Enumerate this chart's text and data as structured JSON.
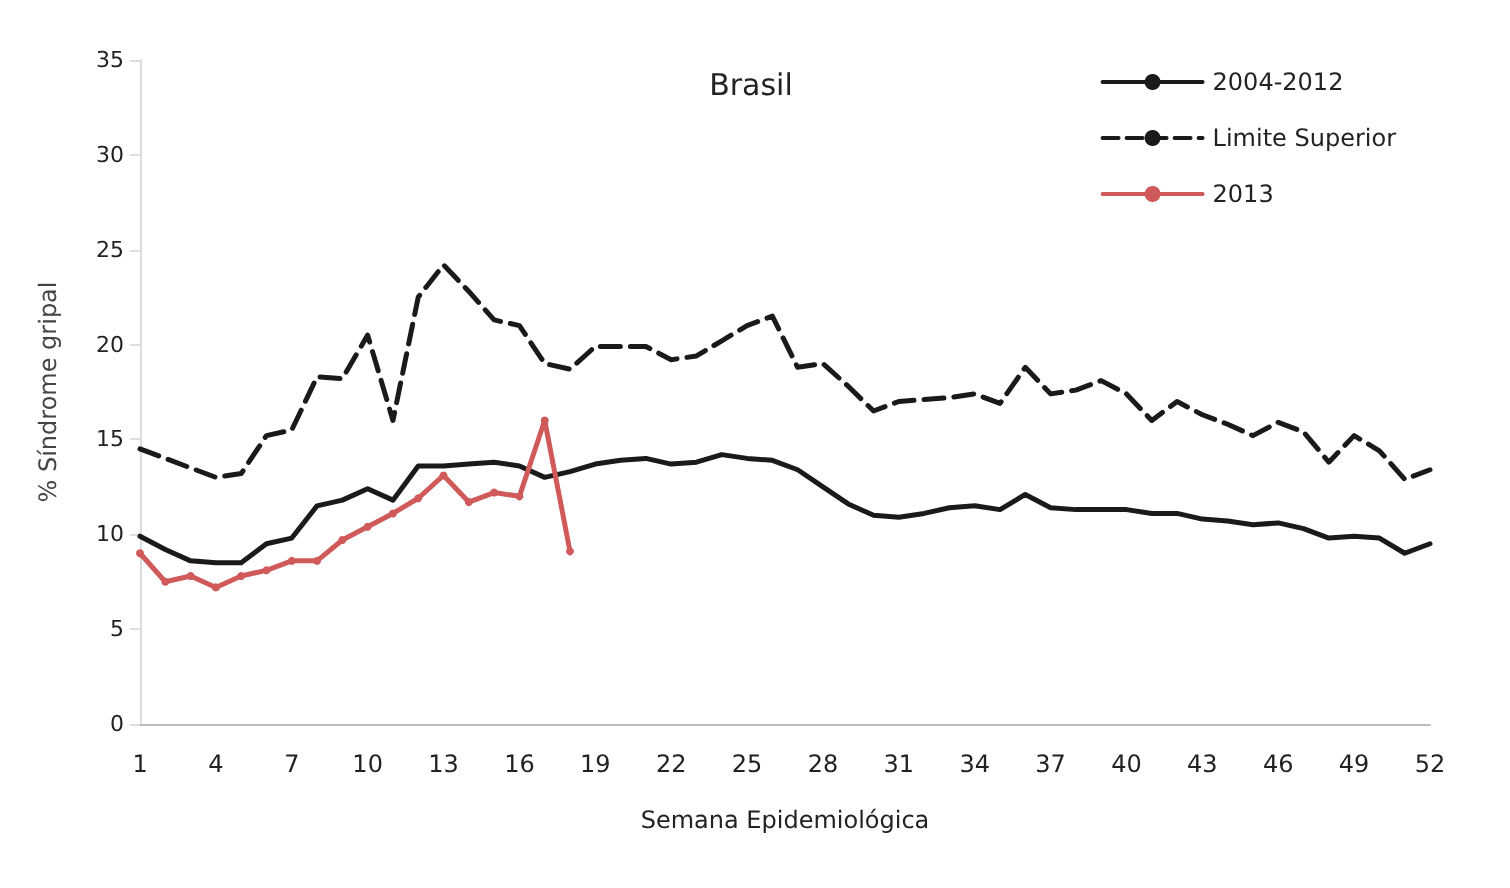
{
  "chart_data": {
    "type": "line",
    "title": "Brasil",
    "xlabel": "Semana Epidemiológica",
    "ylabel": "% Síndrome gripal",
    "categories": [
      "1",
      null,
      null,
      "4",
      null,
      null,
      "7",
      null,
      null,
      "10",
      null,
      null,
      "13",
      null,
      null,
      "16",
      null,
      null,
      "19",
      null,
      null,
      "22",
      null,
      null,
      "25",
      null,
      null,
      "28",
      null,
      null,
      "31",
      null,
      null,
      "34",
      null,
      null,
      "37",
      null,
      null,
      "40",
      null,
      null,
      "43",
      null,
      null,
      "46",
      null,
      null,
      "49",
      null,
      null,
      "52"
    ],
    "series": [
      {
        "name": "2004-2012",
        "color": "#1a1a1a",
        "line_style": "solid",
        "marker": "none",
        "values": [
          9.9,
          9.2,
          8.6,
          8.5,
          8.5,
          9.5,
          9.8,
          11.5,
          11.8,
          12.4,
          11.8,
          13.6,
          13.6,
          13.7,
          13.8,
          13.6,
          13.0,
          13.3,
          13.7,
          13.9,
          14.0,
          13.7,
          13.8,
          14.2,
          14.0,
          13.9,
          13.4,
          12.5,
          11.6,
          11.0,
          10.9,
          11.1,
          11.4,
          11.5,
          11.3,
          12.1,
          11.4,
          11.3,
          11.3,
          11.3,
          11.1,
          11.1,
          10.8,
          10.7,
          10.5,
          10.6,
          10.3,
          9.8,
          9.9,
          9.8,
          9.0,
          9.5
        ]
      },
      {
        "name": "Limite Superior",
        "color": "#1a1a1a",
        "line_style": "dashed",
        "marker": "none",
        "values": [
          14.5,
          14.0,
          13.5,
          13.0,
          13.2,
          15.2,
          15.5,
          18.3,
          18.2,
          20.5,
          16.0,
          22.5,
          24.2,
          22.8,
          21.3,
          21.0,
          19.0,
          18.7,
          19.9,
          19.9,
          19.9,
          19.2,
          19.4,
          20.2,
          21.0,
          21.5,
          18.8,
          19.0,
          17.8,
          16.5,
          17.0,
          17.1,
          17.2,
          17.4,
          16.9,
          18.8,
          17.4,
          17.6,
          18.1,
          17.4,
          16.0,
          17.0,
          16.3,
          15.8,
          15.2,
          15.9,
          15.4,
          13.8,
          15.2,
          14.4,
          12.9,
          13.4
        ]
      },
      {
        "name": "2013",
        "color": "#d05a5a",
        "line_style": "solid",
        "marker": "circle",
        "values": [
          9.0,
          7.5,
          7.8,
          7.2,
          7.8,
          8.1,
          8.6,
          8.6,
          9.7,
          10.4,
          11.1,
          11.9,
          13.1,
          11.7,
          12.2,
          12.0,
          16.0,
          9.1,
          null,
          null,
          null,
          null,
          null,
          null,
          null,
          null,
          null,
          null,
          null,
          null,
          null,
          null,
          null,
          null,
          null,
          null,
          null,
          null,
          null,
          null,
          null,
          null,
          null,
          null,
          null,
          null,
          null,
          null,
          null,
          null,
          null,
          null
        ]
      }
    ],
    "ylim": [
      0,
      35
    ],
    "yticks": [
      0,
      5,
      10,
      15,
      20,
      25,
      30,
      35
    ],
    "grid": false,
    "legend": "top right"
  }
}
